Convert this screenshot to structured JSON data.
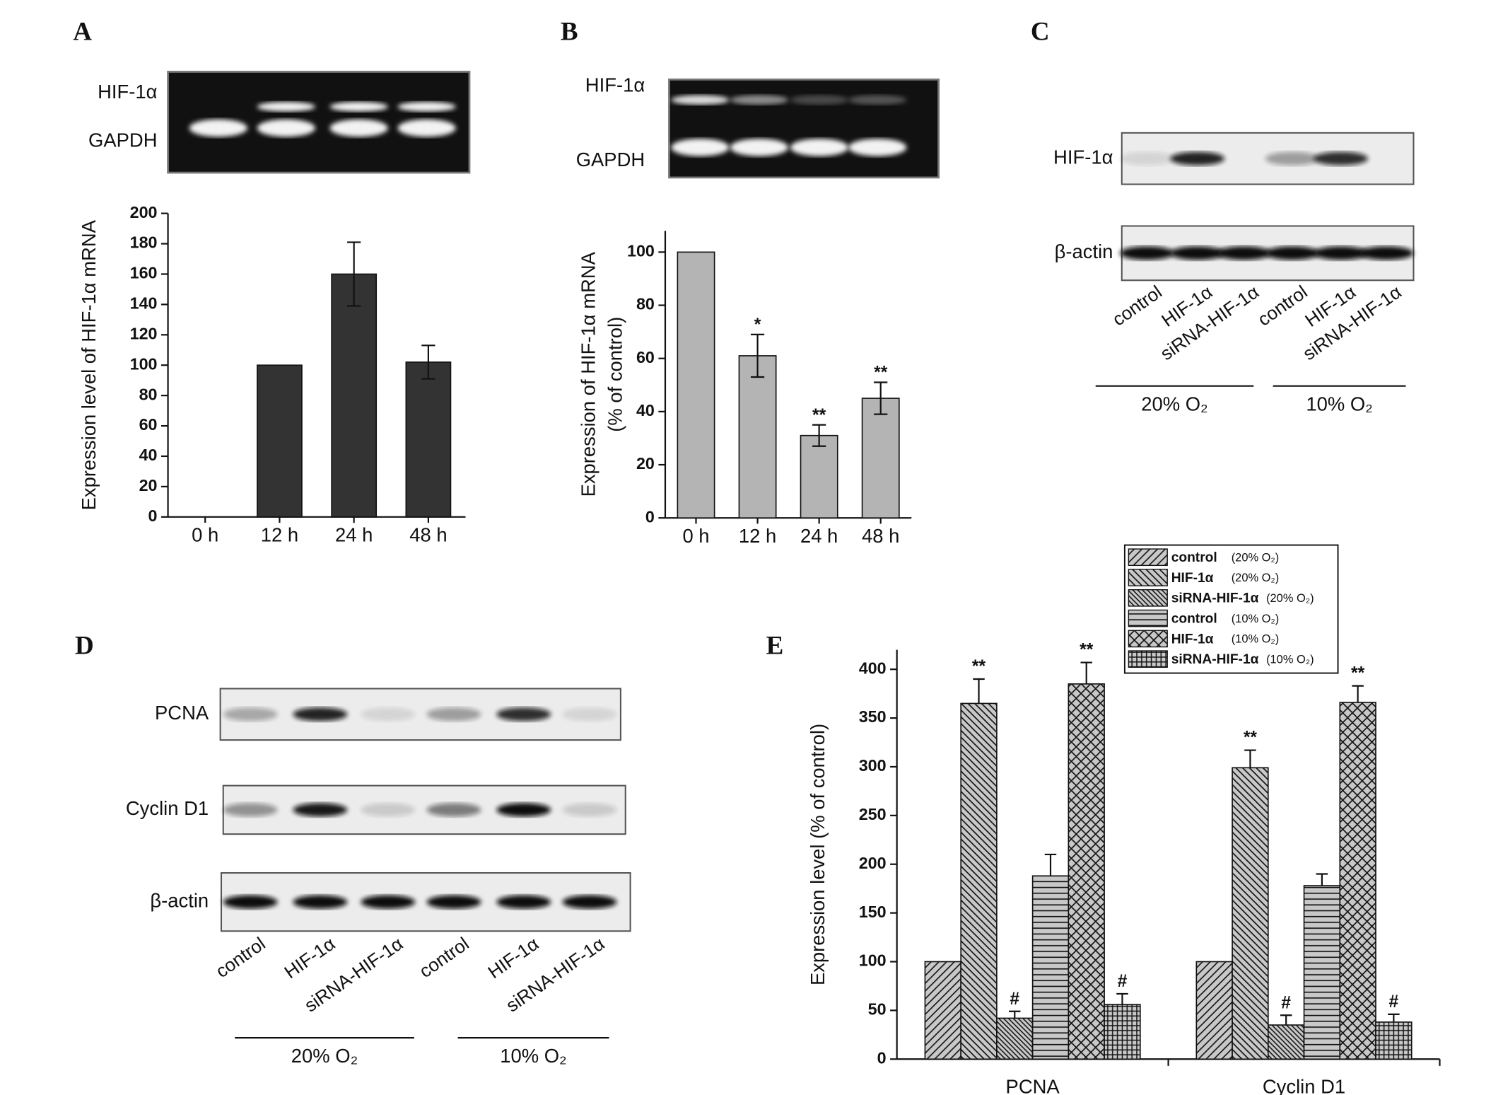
{
  "chart_data": [
    {
      "type": "bar",
      "panel": "A",
      "gel_labels": [
        "HIF-1α",
        "GAPDH"
      ],
      "y_label": [
        "Expression level of HIF-1α mRNA"
      ],
      "categories": [
        "0 h",
        "12 h",
        "24 h",
        "48 h"
      ],
      "values": [
        0,
        100,
        160,
        102
      ],
      "errors": [
        null,
        null,
        21,
        11
      ],
      "annotations": [
        null,
        null,
        null,
        null
      ],
      "color": "#333333",
      "ylim": [
        0,
        200
      ],
      "yticks": [
        0,
        20,
        40,
        60,
        80,
        100,
        120,
        140,
        160,
        180,
        200
      ]
    },
    {
      "type": "bar",
      "panel": "B",
      "gel_labels": [
        "HIF-1α",
        "GAPDH"
      ],
      "y_label": [
        "Expression of HIF-1α mRNA",
        "(% of control)"
      ],
      "categories": [
        "0 h",
        "12 h",
        "24 h",
        "48 h"
      ],
      "values": [
        100,
        61,
        31,
        45
      ],
      "errors": [
        null,
        8,
        4,
        6
      ],
      "annotations": [
        null,
        "*",
        "**",
        "**"
      ],
      "color": "#b4b4b4",
      "ylim": [
        0,
        108
      ],
      "yticks": [
        0,
        20,
        40,
        60,
        80,
        100
      ]
    },
    {
      "type": "grouped_bar",
      "panel": "E",
      "y_label": [
        "Expression level (% of control)"
      ],
      "categories": [
        "PCNA",
        "Cyclin D1"
      ],
      "series": [
        {
          "name": "control",
          "condition": "(20% O₂)",
          "pattern": "diag-right",
          "color": "#c8c8c8",
          "values": [
            100,
            100
          ],
          "errors": [
            null,
            null
          ],
          "annotations": [
            null,
            null
          ]
        },
        {
          "name": "HIF-1α",
          "condition": "(20% O₂)",
          "pattern": "diag-left",
          "color": "#c8c8c8",
          "values": [
            365,
            299
          ],
          "errors": [
            25,
            18
          ],
          "annotations": [
            "**",
            "**"
          ]
        },
        {
          "name": "siRNA-HIF-1α",
          "condition": "(20% O₂)",
          "pattern": "diag-left-dense",
          "color": "#c8c8c8",
          "values": [
            42,
            35
          ],
          "errors": [
            7,
            10
          ],
          "annotations": [
            "#",
            "#"
          ]
        },
        {
          "name": "control",
          "condition": "(10% O₂)",
          "pattern": "horizontal",
          "color": "#c8c8c8",
          "values": [
            188,
            178
          ],
          "errors": [
            22,
            12
          ],
          "annotations": [
            null,
            null
          ]
        },
        {
          "name": "HIF-1α",
          "condition": "(10% O₂)",
          "pattern": "crosshatch",
          "color": "#c8c8c8",
          "values": [
            385,
            366
          ],
          "errors": [
            22,
            17
          ],
          "annotations": [
            "**",
            "**"
          ]
        },
        {
          "name": "siRNA-HIF-1α",
          "condition": "(10% O₂)",
          "pattern": "grid",
          "color": "#c8c8c8",
          "values": [
            56,
            38
          ],
          "errors": [
            11,
            8
          ],
          "annotations": [
            "#",
            "#"
          ]
        }
      ],
      "legend": "top-right",
      "ylim": [
        0,
        420
      ],
      "yticks": [
        0,
        50,
        100,
        150,
        200,
        250,
        300,
        350,
        400
      ]
    }
  ],
  "blots": [
    {
      "panel": "C",
      "rows": [
        "HIF-1α",
        "β-actin"
      ],
      "lanes": [
        "control",
        "HIF-1α",
        "siRNA-HIF-1α",
        "control",
        "HIF-1α",
        "siRNA-HIF-1α"
      ],
      "groups": [
        "20% O₂",
        "10% O₂"
      ]
    },
    {
      "panel": "D",
      "rows": [
        "PCNA",
        "Cyclin D1",
        "β-actin"
      ],
      "lanes": [
        "control",
        "HIF-1α",
        "siRNA-HIF-1α",
        "control",
        "HIF-1α",
        "siRNA-HIF-1α"
      ],
      "groups": [
        "20% O₂",
        "10% O₂"
      ]
    }
  ]
}
